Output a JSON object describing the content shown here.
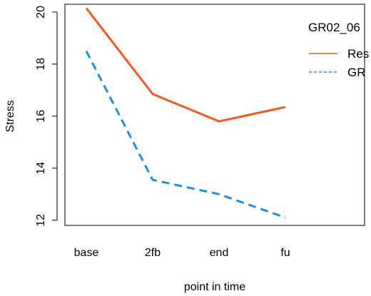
{
  "chart_data": {
    "type": "line",
    "xlabel": "point in time",
    "ylabel": "Stress",
    "categories": [
      "base",
      "2fb",
      "end",
      "fu"
    ],
    "yticks": [
      12,
      14,
      16,
      18,
      20
    ],
    "ylim": [
      11.8,
      20.3
    ],
    "grid": false,
    "legend": {
      "title": "GR02_06",
      "placement": "top-right",
      "entries": [
        "Res",
        "GR"
      ]
    },
    "series": [
      {
        "name": "Res",
        "values": [
          20.15,
          16.85,
          15.8,
          16.35
        ],
        "color": "#ef5a28",
        "dash": "solid"
      },
      {
        "name": "GR",
        "values": [
          18.5,
          13.55,
          13.0,
          12.1
        ],
        "color": "#1e90e0",
        "dash": "dashed"
      }
    ]
  }
}
